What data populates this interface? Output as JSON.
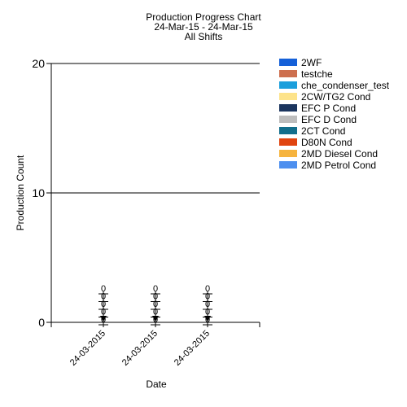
{
  "chart_data": {
    "type": "bar",
    "title": [
      "Production Progress Chart",
      "24-Mar-15 - 24-Mar-15",
      "All Shifts"
    ],
    "xlabel": "Date",
    "ylabel": "Production Count",
    "ylim": [
      0,
      20
    ],
    "yticks": [
      0,
      10,
      20
    ],
    "categories": [
      "24-03-2015",
      "24-03-2015",
      "24-03-2015"
    ],
    "series": [
      {
        "name": "2WF",
        "color": "#1560d8",
        "values": [
          0,
          0,
          0
        ]
      },
      {
        "name": "testche",
        "color": "#cd6f4e",
        "values": [
          0,
          0,
          0
        ]
      },
      {
        "name": "che_condenser_test",
        "color": "#1c9fdc",
        "values": [
          0,
          0,
          0
        ]
      },
      {
        "name": "2CW/TG2 Cond",
        "color": "#fde38a",
        "values": [
          0,
          0,
          0
        ]
      },
      {
        "name": "EFC P Cond",
        "color": "#1b355e",
        "values": [
          0,
          0,
          0
        ]
      },
      {
        "name": "EFC D Cond",
        "color": "#bdbdbd",
        "values": [
          0,
          0,
          0
        ]
      },
      {
        "name": "2CT Cond",
        "color": "#126e8c",
        "values": [
          0,
          0,
          0
        ]
      },
      {
        "name": "D80N Cond",
        "color": "#e0440f",
        "values": [
          0,
          0,
          0
        ]
      },
      {
        "name": "2MD Diesel Cond",
        "color": "#f6b43f",
        "values": [
          0,
          0,
          0
        ]
      },
      {
        "name": "2MD Petrol Cond",
        "color": "#4d8fef",
        "values": [
          0,
          0,
          0
        ]
      }
    ],
    "data_labels": [
      "0",
      "0",
      "0",
      "0",
      "0"
    ],
    "grid": true,
    "legend_position": "right"
  }
}
